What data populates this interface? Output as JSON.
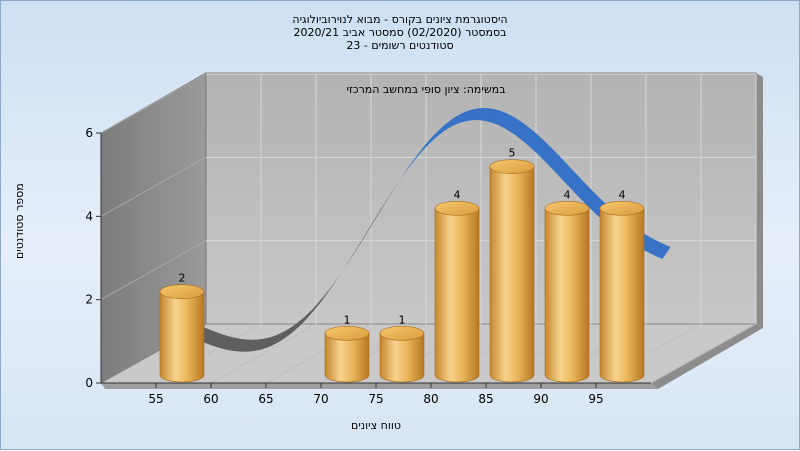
{
  "title_lines": [
    "היסטוגרמת ציונים בקורס - מבוא לנוירוביולוגיה",
    "בסמסטר  (02/2020)  סמסטר אביב 2020/21",
    "סטודנטים רשומים - 23"
  ],
  "chart_data": {
    "type": "bar",
    "subtitle": "במשימה: ציון סופי במחשב המרכזי",
    "xlabel": "טווח ציונים",
    "ylabel": "מספר סטודנטים",
    "categories": [
      "55",
      "60",
      "65",
      "70",
      "75",
      "80",
      "85",
      "90",
      "95"
    ],
    "values": [
      2,
      0,
      0,
      1,
      1,
      4,
      5,
      4,
      4
    ],
    "data_labels": [
      "2",
      "",
      "",
      "1",
      "1",
      "4",
      "5",
      "4",
      "4"
    ],
    "ylim": [
      0,
      6
    ],
    "yticks": [
      "0",
      "2",
      "4",
      "6"
    ],
    "grid": true,
    "bar_color": "#e8a94a",
    "curve_colors": {
      "below": "#5a5a5a",
      "above": "#2e6fc7"
    }
  }
}
